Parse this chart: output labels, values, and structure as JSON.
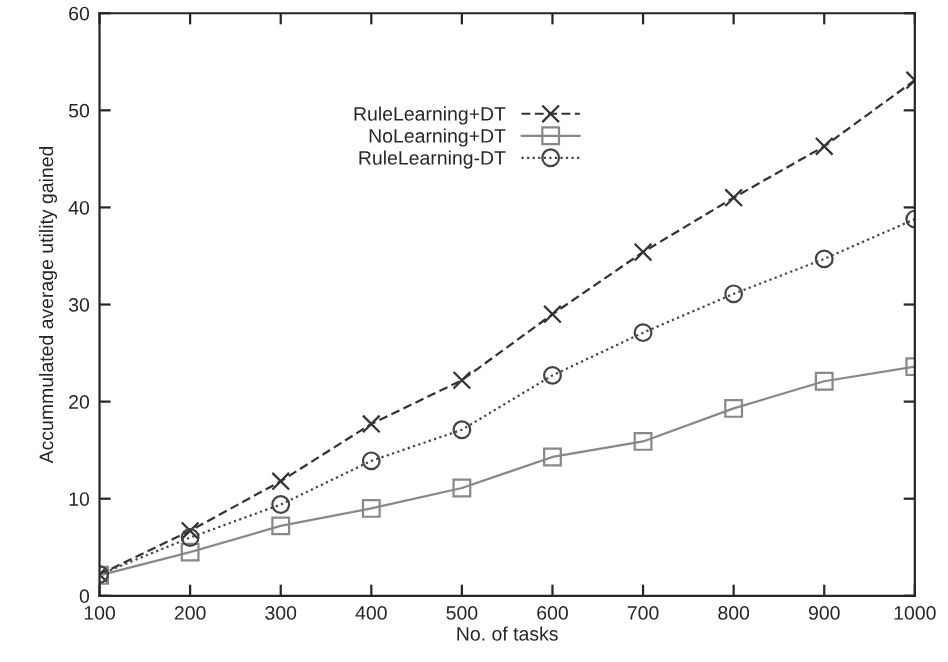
{
  "chart_data": {
    "type": "line",
    "xlabel": "No. of tasks",
    "ylabel": "Accummulated average utility gained",
    "x": [
      100,
      200,
      300,
      400,
      500,
      600,
      700,
      800,
      900,
      1000
    ],
    "series": [
      {
        "name": "RuleLearning+DT",
        "color": "#333333",
        "marker": "cross",
        "line_style": "dashed",
        "values": [
          2.2,
          6.7,
          11.8,
          17.7,
          22.2,
          29.0,
          35.4,
          41.0,
          46.3,
          53.1
        ]
      },
      {
        "name": "NoLearning+DT",
        "color": "#888888",
        "marker": "square",
        "line_style": "solid",
        "values": [
          2.1,
          4.5,
          7.2,
          9.0,
          11.1,
          14.3,
          15.9,
          19.3,
          22.1,
          23.6
        ]
      },
      {
        "name": "RuleLearning-DT",
        "color": "#444444",
        "marker": "circle",
        "line_style": "dotted",
        "values": [
          2.2,
          6.0,
          9.4,
          13.9,
          17.1,
          22.7,
          27.1,
          31.1,
          34.7,
          38.8
        ]
      }
    ],
    "xlim": [
      100,
      1000
    ],
    "ylim": [
      0,
      60
    ],
    "xticks": [
      100,
      200,
      300,
      400,
      500,
      600,
      700,
      800,
      900,
      1000
    ],
    "yticks": [
      0,
      10,
      20,
      30,
      40,
      50,
      60
    ],
    "legend": "top",
    "grid": false
  }
}
